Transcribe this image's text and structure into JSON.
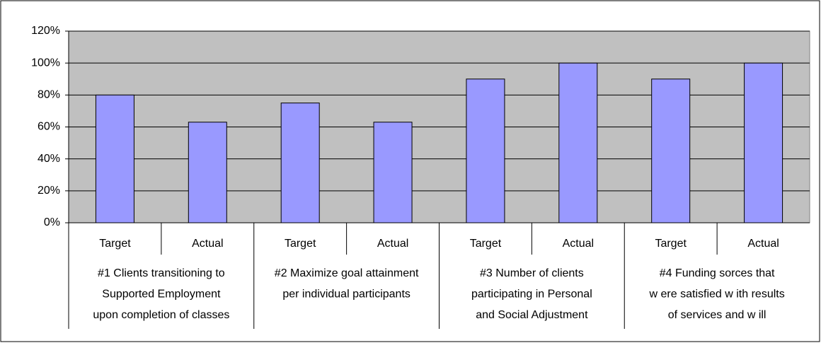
{
  "chart_data": {
    "type": "bar",
    "categories": [
      "Target",
      "Actual",
      "Target",
      "Actual",
      "Target",
      "Actual",
      "Target",
      "Actual"
    ],
    "groups": [
      [
        "#1 Clients transitioning to",
        "Supported Employment",
        "upon completion of classes"
      ],
      [
        "#2 Maximize goal attainment",
        "per individual participants"
      ],
      [
        "#3 Number of clients",
        "participating in Personal",
        "and Social Adjustment"
      ],
      [
        "#4 Funding sorces that",
        "w ere satisfied w ith results",
        "of services and w ill"
      ]
    ],
    "values": [
      80,
      63,
      75,
      63,
      90,
      100,
      90,
      100
    ],
    "color": "#9999ff",
    "ylim": [
      0,
      120
    ],
    "yticks": [
      {
        "value": 0,
        "label": "0%"
      },
      {
        "value": 20,
        "label": "20%"
      },
      {
        "value": 40,
        "label": "40%"
      },
      {
        "value": 60,
        "label": "60%"
      },
      {
        "value": 80,
        "label": "80%"
      },
      {
        "value": 100,
        "label": "100%"
      },
      {
        "value": 120,
        "label": "120%"
      }
    ],
    "grid": true
  }
}
